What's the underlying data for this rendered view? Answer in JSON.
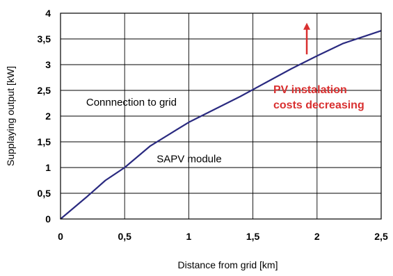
{
  "chart_data": {
    "type": "line",
    "title": "",
    "xlabel": "Distance from grid [km]",
    "ylabel": "Supplaying output [kW]",
    "xlim": [
      0,
      2.5
    ],
    "ylim": [
      0,
      4
    ],
    "x_ticks": [
      {
        "value": 0,
        "label": "0"
      },
      {
        "value": 0.5,
        "label": "0,5"
      },
      {
        "value": 1,
        "label": "1"
      },
      {
        "value": 1.5,
        "label": "1,5"
      },
      {
        "value": 2,
        "label": "2"
      },
      {
        "value": 2.5,
        "label": "2,5"
      }
    ],
    "y_ticks": [
      {
        "value": 0,
        "label": "0"
      },
      {
        "value": 0.5,
        "label": "0,5"
      },
      {
        "value": 1,
        "label": "1"
      },
      {
        "value": 1.5,
        "label": "1,5"
      },
      {
        "value": 2,
        "label": "2"
      },
      {
        "value": 2.5,
        "label": "2,5"
      },
      {
        "value": 3,
        "label": "3"
      },
      {
        "value": 3.5,
        "label": "3,5"
      },
      {
        "value": 4,
        "label": "4"
      }
    ],
    "grid": true,
    "legend": "none",
    "series": [
      {
        "color": "#2a2a80",
        "points": [
          {
            "x": 0,
            "y": 0
          },
          {
            "x": 0.2,
            "y": 0.42
          },
          {
            "x": 0.35,
            "y": 0.75
          },
          {
            "x": 0.5,
            "y": 1.0
          },
          {
            "x": 0.7,
            "y": 1.42
          },
          {
            "x": 0.85,
            "y": 1.65
          },
          {
            "x": 1.0,
            "y": 1.88
          },
          {
            "x": 1.2,
            "y": 2.13
          },
          {
            "x": 1.4,
            "y": 2.38
          },
          {
            "x": 1.6,
            "y": 2.65
          },
          {
            "x": 1.8,
            "y": 2.92
          },
          {
            "x": 2.0,
            "y": 3.17
          },
          {
            "x": 2.2,
            "y": 3.41
          },
          {
            "x": 2.5,
            "y": 3.66
          }
        ]
      }
    ],
    "annotations": [
      {
        "text": "Connnection to grid",
        "x": 0.2,
        "y": 2.2,
        "color": "#000000"
      },
      {
        "text": "SAPV module",
        "x": 0.75,
        "y": 1.1,
        "color": "#000000"
      }
    ],
    "highlight": {
      "lines": [
        "PV instalation",
        "costs decreasing"
      ],
      "color": "#d93030",
      "arrow_x": 1.92,
      "arrow_from": 3.2,
      "arrow_to": 3.8
    }
  }
}
